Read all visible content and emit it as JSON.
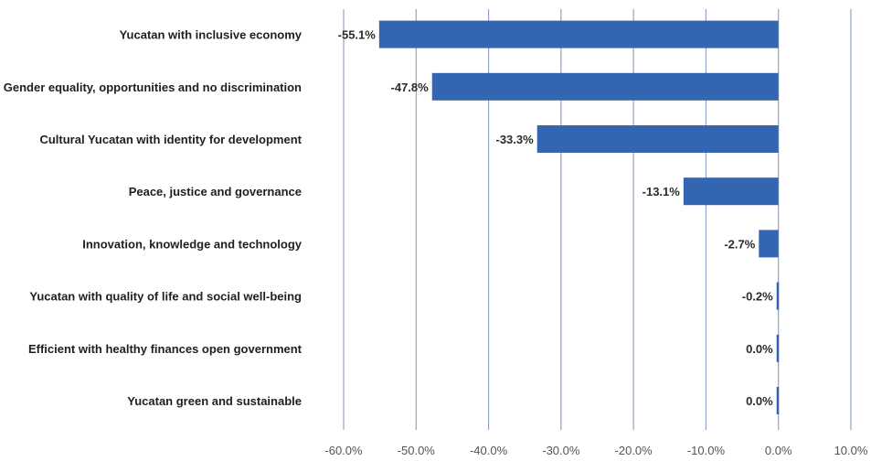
{
  "chart_data": {
    "type": "bar",
    "orientation": "horizontal",
    "categories": [
      "Yucatan with inclusive economy",
      "Gender equality, opportunities and no discrimination",
      "Cultural Yucatan with identity for development",
      "Peace, justice and governance",
      "Innovation, knowledge and technology",
      "Yucatan with quality of life and social well-being",
      "Efficient with healthy finances open government",
      "Yucatan green and sustainable"
    ],
    "values": [
      -55.1,
      -47.8,
      -33.3,
      -13.1,
      -2.7,
      -0.2,
      0.0,
      0.0
    ],
    "data_labels": [
      "-55.1%",
      "-47.8%",
      "-33.3%",
      "-13.1%",
      "-2.7%",
      "-0.2%",
      "0.0%",
      "0.0%"
    ],
    "xlim": [
      -60,
      10
    ],
    "x_ticks": [
      -60,
      -50,
      -40,
      -30,
      -20,
      -10,
      0,
      10
    ],
    "x_tick_labels": [
      "-60.0%",
      "-50.0%",
      "-40.0%",
      "-30.0%",
      "-20.0%",
      "-10.0%",
      "0.0%",
      "10.0%"
    ],
    "title": "",
    "xlabel": "",
    "ylabel": "",
    "grid": "vertical",
    "legend": "none",
    "colors": {
      "bar": "#3465b0",
      "grid": "#8fa3cc",
      "text": "#1f1f1f",
      "tick_text": "#555555"
    }
  }
}
